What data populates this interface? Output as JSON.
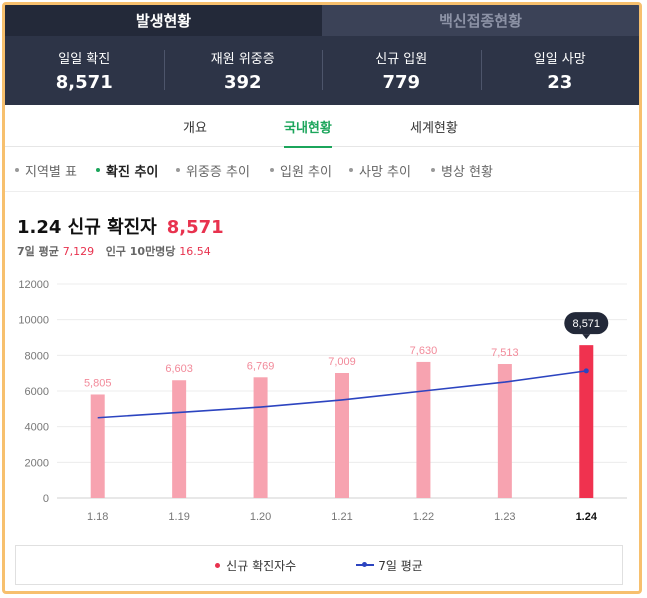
{
  "main_tabs": [
    {
      "label": "발생현황",
      "active": true
    },
    {
      "label": "백신접종현황",
      "active": false
    }
  ],
  "stats": [
    {
      "label": "일일 확진",
      "value": "8,571"
    },
    {
      "label": "재원 위중증",
      "value": "392"
    },
    {
      "label": "신규 입원",
      "value": "779"
    },
    {
      "label": "일일 사망",
      "value": "23"
    }
  ],
  "sub_tabs": [
    {
      "label": "개요",
      "active": false
    },
    {
      "label": "국내현황",
      "active": true
    },
    {
      "label": "세계현황",
      "active": false
    }
  ],
  "filters": [
    {
      "label": "지역별 표",
      "active": false
    },
    {
      "label": "확진 추이",
      "active": true
    },
    {
      "label": "위중증 추이",
      "active": false
    },
    {
      "label": "입원 추이",
      "active": false
    },
    {
      "label": "사망 추이",
      "active": false
    },
    {
      "label": "병상 현황",
      "active": false
    }
  ],
  "headline": {
    "title": "1.24 신규 확진자",
    "value": "8,571"
  },
  "subline": {
    "avg_label": "7일 평균",
    "avg_value": "7,129",
    "pop_label": "인구 10만명당",
    "pop_value": "16.54"
  },
  "colors": {
    "accent_green": "#1ba55b",
    "bar_pink": "#f7a3b0",
    "bar_highlight": "#f0324f",
    "avg_line": "#2c44c0",
    "header_bg": "#2d3447"
  },
  "chart_data": {
    "type": "bar",
    "categories": [
      "1.18",
      "1.19",
      "1.20",
      "1.21",
      "1.22",
      "1.23",
      "1.24"
    ],
    "series": [
      {
        "name": "신규 확진자수",
        "type": "bar",
        "values": [
          5805,
          6603,
          6769,
          7009,
          7630,
          7513,
          8571
        ]
      },
      {
        "name": "7일 평균",
        "type": "line",
        "values": [
          4500,
          4800,
          5100,
          5500,
          6000,
          6500,
          7129
        ]
      }
    ],
    "data_labels": [
      "5,805",
      "6,603",
      "6,769",
      "7,009",
      "7,630",
      "7,513",
      "8,571"
    ],
    "highlight_index": 6,
    "ylim": [
      0,
      12000
    ],
    "yticks": [
      0,
      2000,
      4000,
      6000,
      8000,
      10000,
      12000
    ],
    "grid": true,
    "legend_position": "bottom"
  }
}
